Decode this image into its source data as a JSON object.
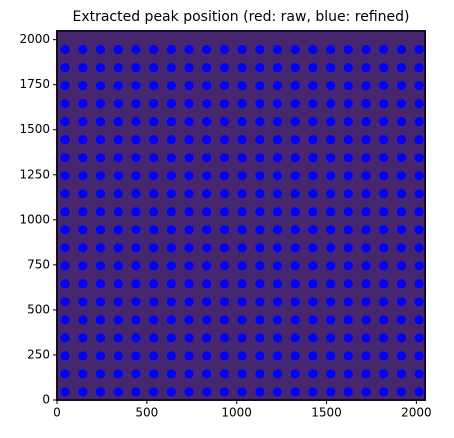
{
  "chart_data": {
    "type": "scatter",
    "title": "Extracted peak position (red: raw, blue: refined)",
    "xlim": [
      0,
      2048
    ],
    "ylim": [
      0,
      2048
    ],
    "xticks": [
      0,
      500,
      1000,
      1500,
      2000
    ],
    "yticks": [
      0,
      250,
      500,
      750,
      1000,
      1250,
      1500,
      1750,
      2000
    ],
    "color": "#0000ff",
    "image_color": "#46276f",
    "x": [
      45,
      144,
      242,
      341,
      439,
      538,
      636,
      735,
      833,
      932,
      1030,
      1129,
      1227,
      1326,
      1424,
      1523,
      1621,
      1720,
      1818,
      1917,
      2015
    ],
    "series": [
      {
        "values": [
          45,
          45,
          45,
          45,
          45,
          45,
          45,
          45,
          45,
          45,
          45,
          45,
          45,
          45,
          45,
          45,
          45,
          45,
          45,
          45,
          45
        ]
      },
      {
        "values": [
          145,
          145,
          145,
          145,
          145,
          145,
          145,
          145,
          145,
          145,
          145,
          145,
          145,
          145,
          145,
          145,
          145,
          145,
          145,
          145,
          145
        ]
      },
      {
        "values": [
          245,
          245,
          245,
          245,
          245,
          245,
          245,
          245,
          245,
          245,
          245,
          245,
          245,
          245,
          245,
          245,
          245,
          245,
          245,
          245,
          245
        ]
      },
      {
        "values": [
          345,
          345,
          345,
          345,
          345,
          345,
          345,
          345,
          345,
          345,
          345,
          345,
          345,
          345,
          345,
          345,
          345,
          345,
          345,
          345,
          345
        ]
      },
      {
        "values": [
          445,
          445,
          445,
          445,
          445,
          445,
          445,
          445,
          445,
          445,
          445,
          445,
          445,
          445,
          445,
          445,
          445,
          445,
          445,
          445,
          445
        ]
      },
      {
        "values": [
          545,
          545,
          545,
          545,
          545,
          545,
          545,
          545,
          545,
          545,
          545,
          545,
          545,
          545,
          545,
          545,
          545,
          545,
          545,
          545,
          545
        ]
      },
      {
        "values": [
          645,
          645,
          645,
          645,
          645,
          645,
          645,
          645,
          645,
          645,
          645,
          645,
          645,
          645,
          645,
          645,
          645,
          645,
          645,
          645,
          645
        ]
      },
      {
        "values": [
          745,
          745,
          745,
          745,
          745,
          745,
          745,
          745,
          745,
          745,
          745,
          745,
          745,
          745,
          745,
          745,
          745,
          745,
          745,
          745,
          745
        ]
      },
      {
        "values": [
          845,
          845,
          845,
          845,
          845,
          845,
          845,
          845,
          845,
          845,
          845,
          845,
          845,
          845,
          845,
          845,
          845,
          845,
          845,
          845,
          845
        ]
      },
      {
        "values": [
          945,
          945,
          945,
          945,
          945,
          945,
          945,
          945,
          945,
          945,
          945,
          945,
          945,
          945,
          945,
          945,
          945,
          945,
          945,
          945,
          945
        ]
      },
      {
        "values": [
          1045,
          1045,
          1045,
          1045,
          1045,
          1045,
          1045,
          1045,
          1045,
          1045,
          1045,
          1045,
          1045,
          1045,
          1045,
          1045,
          1045,
          1045,
          1045,
          1045,
          1045
        ]
      },
      {
        "values": [
          1145,
          1145,
          1145,
          1145,
          1145,
          1145,
          1145,
          1145,
          1145,
          1145,
          1145,
          1145,
          1145,
          1145,
          1145,
          1145,
          1145,
          1145,
          1145,
          1145,
          1145
        ]
      },
      {
        "values": [
          1245,
          1245,
          1245,
          1245,
          1245,
          1245,
          1245,
          1245,
          1245,
          1245,
          1245,
          1245,
          1245,
          1245,
          1245,
          1245,
          1245,
          1245,
          1245,
          1245,
          1245
        ]
      },
      {
        "values": [
          1345,
          1345,
          1345,
          1345,
          1345,
          1345,
          1345,
          1345,
          1345,
          1345,
          1345,
          1345,
          1345,
          1345,
          1345,
          1345,
          1345,
          1345,
          1345,
          1345,
          1345
        ]
      },
      {
        "values": [
          1445,
          1445,
          1445,
          1445,
          1445,
          1445,
          1445,
          1445,
          1445,
          1445,
          1445,
          1445,
          1445,
          1445,
          1445,
          1445,
          1445,
          1445,
          1445,
          1445,
          1445
        ]
      },
      {
        "values": [
          1545,
          1545,
          1545,
          1545,
          1545,
          1545,
          1545,
          1545,
          1545,
          1545,
          1545,
          1545,
          1545,
          1545,
          1545,
          1545,
          1545,
          1545,
          1545,
          1545,
          1545
        ]
      },
      {
        "values": [
          1645,
          1645,
          1645,
          1645,
          1645,
          1645,
          1645,
          1645,
          1645,
          1645,
          1645,
          1645,
          1645,
          1645,
          1645,
          1645,
          1645,
          1645,
          1645,
          1645,
          1645
        ]
      },
      {
        "values": [
          1745,
          1745,
          1745,
          1745,
          1745,
          1745,
          1745,
          1745,
          1745,
          1745,
          1745,
          1745,
          1745,
          1745,
          1745,
          1745,
          1745,
          1745,
          1745,
          1745,
          1745
        ]
      },
      {
        "values": [
          1845,
          1845,
          1845,
          1845,
          1845,
          1845,
          1845,
          1845,
          1845,
          1845,
          1845,
          1845,
          1845,
          1845,
          1845,
          1845,
          1845,
          1845,
          1845,
          1845,
          1845
        ]
      },
      {
        "values": [
          1945,
          1945,
          1945,
          1945,
          1945,
          1945,
          1945,
          1945,
          1945,
          1945,
          1945,
          1945,
          1945,
          1945,
          1945,
          1945,
          1945,
          1945,
          1945,
          1945,
          1945
        ]
      }
    ]
  }
}
